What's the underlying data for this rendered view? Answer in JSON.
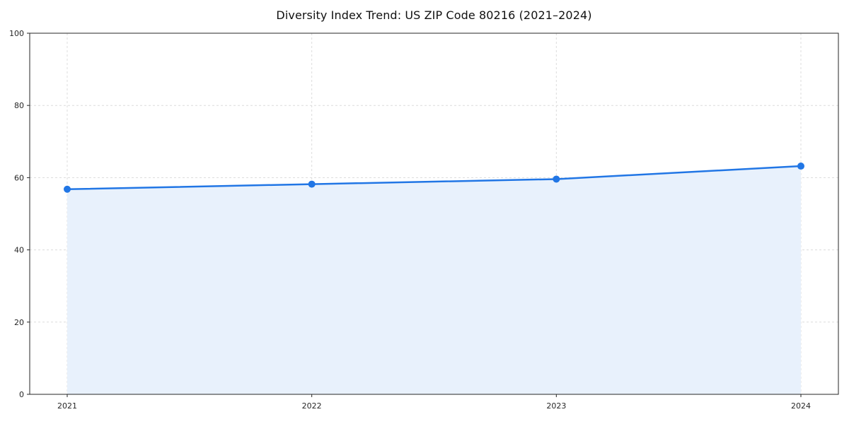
{
  "chart_data": {
    "type": "line",
    "title": "Diversity Index Trend: US ZIP Code 80216 (2021–2024)",
    "categories": [
      "2021",
      "2022",
      "2023",
      "2024"
    ],
    "values": [
      56.8,
      58.2,
      59.6,
      63.2
    ],
    "series_name": "Diversity Index",
    "xlabel": "",
    "ylabel": "",
    "ylim": [
      0,
      100
    ],
    "yticks": [
      0,
      20,
      40,
      60,
      80,
      100
    ],
    "grid": "dashed-both",
    "legend": "none",
    "area_fill": true,
    "colors": {
      "line": "#2176e5",
      "marker": "#2176e5",
      "fill": "#e8f1fc",
      "grid": "#dcdcdc",
      "axis": "#262626",
      "tick_label": "#262626",
      "background": "#ffffff"
    }
  }
}
